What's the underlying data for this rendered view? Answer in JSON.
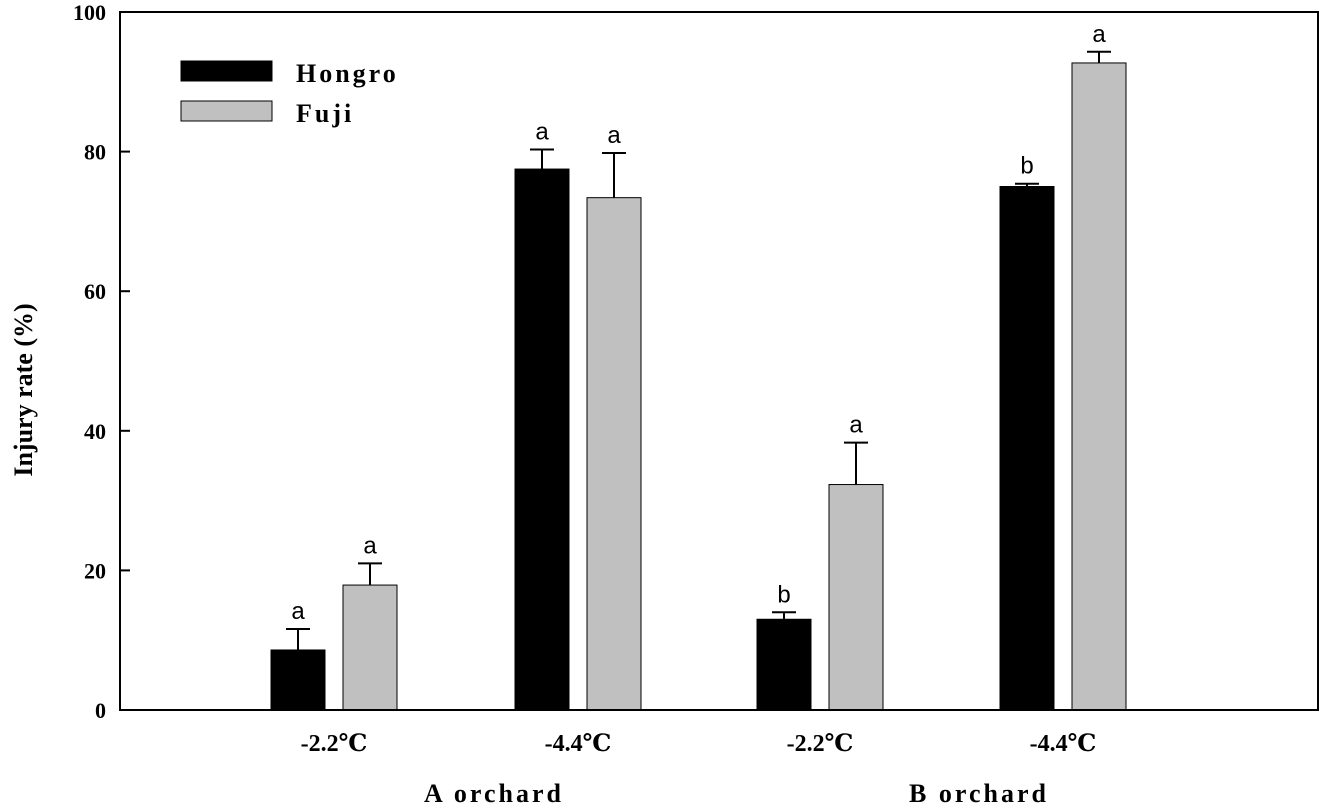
{
  "chart_data": {
    "type": "bar",
    "ylabel": "Injury rate (%)",
    "ylim": [
      0,
      100
    ],
    "yticks": [
      "0",
      "20",
      "40",
      "60",
      "80",
      "100"
    ],
    "grid": false,
    "legend_position": "top-left",
    "groups": [
      {
        "label": "A orchard",
        "categories": [
          "-2.2℃",
          "-4.4℃"
        ]
      },
      {
        "label": "B orchard",
        "categories": [
          "-2.2℃",
          "-4.4℃"
        ]
      }
    ],
    "categories": [
      "-2.2℃",
      "-4.4℃",
      "-2.2℃",
      "-4.4℃"
    ],
    "series": [
      {
        "name": "Hongro",
        "color": "#000000",
        "values": [
          8.6,
          77.5,
          13.0,
          75.0
        ],
        "errors": [
          3.0,
          2.8,
          1.0,
          0.4
        ],
        "letters": [
          "a",
          "a",
          "b",
          "b"
        ]
      },
      {
        "name": "Fuji",
        "color": "#c0c0c0",
        "values": [
          17.9,
          73.4,
          32.3,
          92.7
        ],
        "errors": [
          3.1,
          6.4,
          6.0,
          1.6
        ],
        "letters": [
          "a",
          "a",
          "a",
          "a"
        ]
      }
    ]
  }
}
